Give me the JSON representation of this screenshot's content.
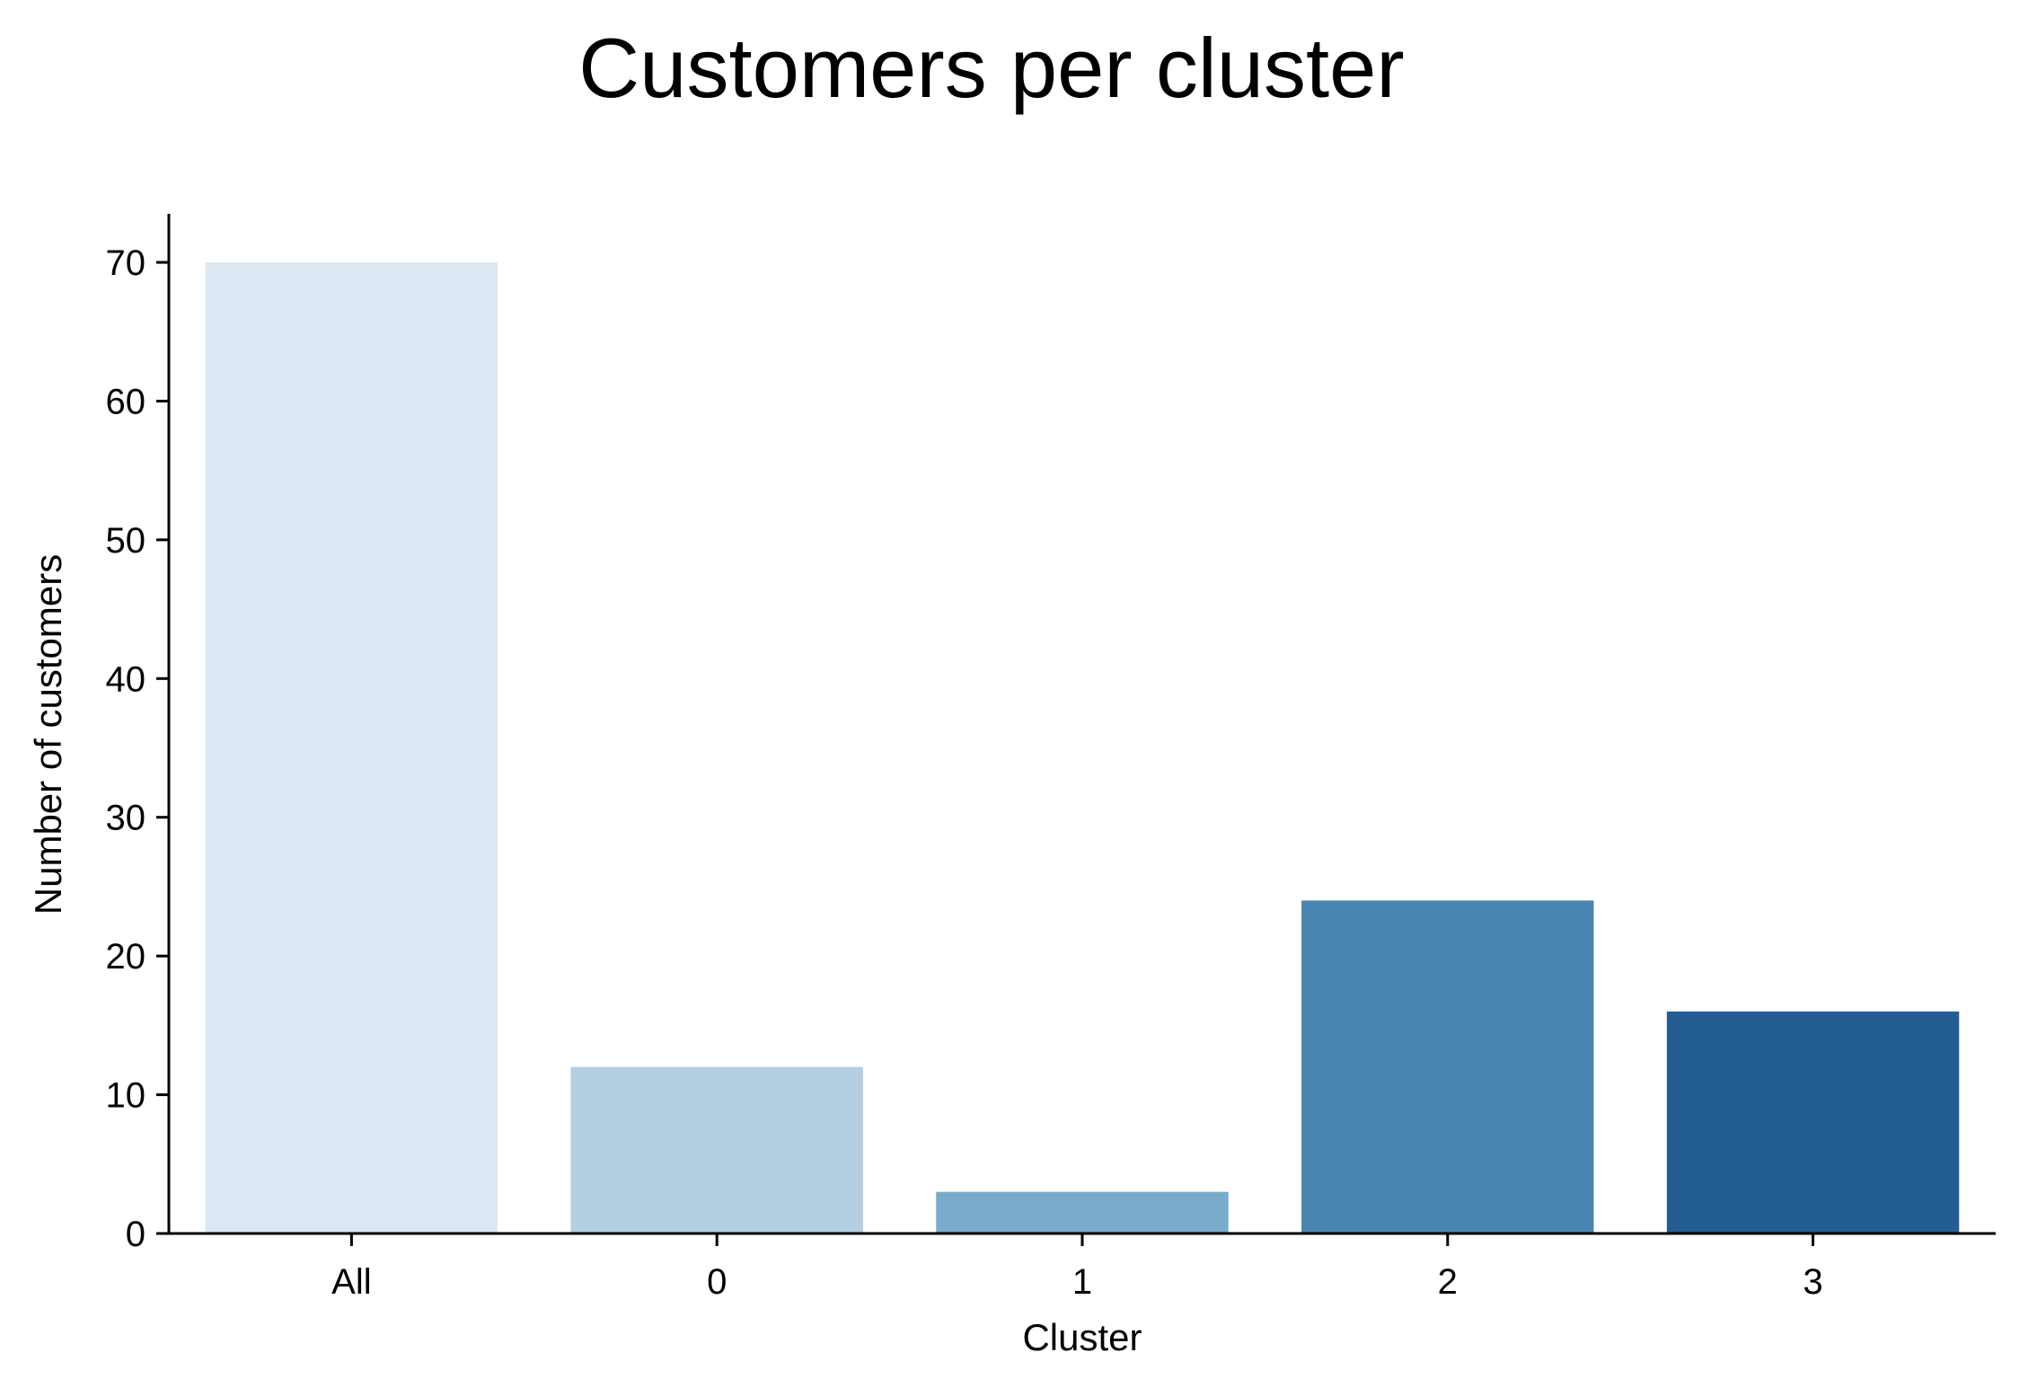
{
  "chart_data": {
    "type": "bar",
    "title": "Customers per cluster",
    "xlabel": "Cluster",
    "ylabel": "Number of customers",
    "categories": [
      "All",
      "0",
      "1",
      "2",
      "3"
    ],
    "values": [
      70,
      12,
      3,
      24,
      16
    ],
    "colors": [
      "#dbe7f3",
      "#b3cfe1",
      "#79abcb",
      "#4a85b1",
      "#245d92"
    ],
    "ylim": [
      0,
      73.5
    ],
    "yticks": [
      0,
      10,
      20,
      30,
      40,
      50,
      60,
      70
    ],
    "grid": false,
    "legend": false
  }
}
